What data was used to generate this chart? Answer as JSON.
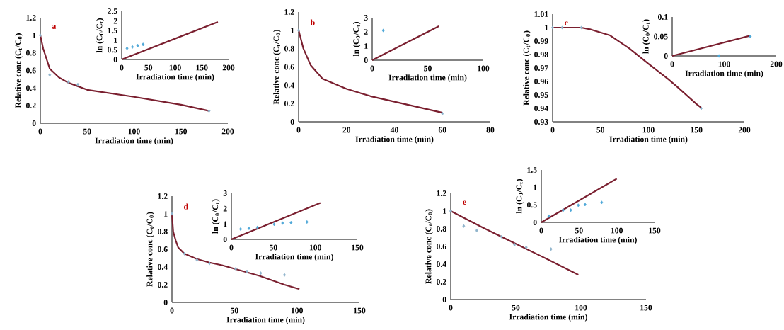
{
  "chart_data": [
    {
      "type": "line",
      "annotations": [
        "a"
      ],
      "xlabel": "Irradiation time (min)",
      "ylabel": "Relative conc (C$_{t}$/C$_{0}$)",
      "xlim": [
        0,
        200
      ],
      "ylim": [
        0,
        1.2
      ],
      "xticks": [
        0,
        50,
        100,
        150,
        200
      ],
      "yticks": [
        0,
        0.2,
        0.4,
        0.6,
        0.8,
        1,
        1.2
      ],
      "series": [
        {
          "type": "line",
          "color": "#7a1f2f",
          "x": [
            0,
            3,
            10,
            20,
            30,
            50,
            100,
            150,
            180
          ],
          "values": [
            1,
            0.85,
            0.62,
            0.52,
            0.46,
            0.38,
            0.3,
            0.21,
            0.14
          ]
        },
        {
          "type": "scatter",
          "color": "#8fb4cc",
          "marker": "diamond",
          "x": [
            0,
            10,
            30,
            40,
            180
          ],
          "values": [
            1,
            0.55,
            0.47,
            0.44,
            0.14
          ]
        }
      ]
    },
    {
      "type": "line",
      "xlabel": "Irradiation time (min)",
      "ylabel": "ln (C$_{0}$/C$_{t}$)",
      "xlim": [
        0,
        200
      ],
      "ylim": [
        0,
        2.5
      ],
      "xticks": [
        0,
        50,
        100,
        150,
        200
      ],
      "yticks": [
        0,
        0.5,
        1,
        1.5,
        2,
        2.5
      ],
      "series": [
        {
          "type": "line",
          "color": "#7a1f2f",
          "x": [
            0,
            180
          ],
          "values": [
            0,
            1.95
          ]
        },
        {
          "type": "scatter",
          "color": "#4fa8d8",
          "marker": "diamond",
          "x": [
            10,
            20,
            30,
            40
          ],
          "values": [
            0.58,
            0.65,
            0.72,
            0.78
          ]
        }
      ]
    },
    {
      "type": "line",
      "annotations": [
        "b"
      ],
      "xlabel": "Irradiation time (min)",
      "ylabel": "Relative conc (C$_{t}$/C$_{0}$)",
      "xlim": [
        0,
        80
      ],
      "ylim": [
        0,
        1.2
      ],
      "xticks": [
        0,
        20,
        40,
        60,
        80
      ],
      "yticks": [
        0,
        0.2,
        0.4,
        0.6,
        0.8,
        1,
        1.2
      ],
      "series": [
        {
          "type": "line",
          "color": "#7a1f2f",
          "x": [
            0,
            2,
            5,
            10,
            20,
            30,
            40,
            50,
            60
          ],
          "values": [
            1,
            0.8,
            0.62,
            0.47,
            0.36,
            0.28,
            0.22,
            0.16,
            0.1
          ]
        },
        {
          "type": "scatter",
          "color": "#8fb4cc",
          "marker": "diamond",
          "x": [
            0,
            60
          ],
          "values": [
            1,
            0.09
          ]
        }
      ]
    },
    {
      "type": "line",
      "xlabel": "Irradiation time (min)",
      "ylabel": "ln (C$_{0}$/C$_{t}$)",
      "xlim": [
        0,
        100
      ],
      "ylim": [
        0,
        3
      ],
      "xticks": [
        0,
        50,
        100
      ],
      "yticks": [
        0,
        1,
        2,
        3
      ],
      "series": [
        {
          "type": "line",
          "color": "#7a1f2f",
          "x": [
            0,
            60
          ],
          "values": [
            0,
            2.4
          ]
        },
        {
          "type": "scatter",
          "color": "#4fa8d8",
          "marker": "diamond",
          "x": [
            10
          ],
          "values": [
            2.1
          ]
        }
      ]
    },
    {
      "type": "line",
      "annotations": [
        "c"
      ],
      "xlabel": "Irradiation time (min)",
      "ylabel": "Relative conc (C$_{t}$/C$_{0}$)",
      "xlim": [
        0,
        200
      ],
      "ylim": [
        0.93,
        1.01
      ],
      "xticks": [
        0,
        50,
        100,
        150,
        200
      ],
      "yticks": [
        0.93,
        0.94,
        0.95,
        0.96,
        0.97,
        0.98,
        0.99,
        1,
        1.01
      ],
      "series": [
        {
          "type": "line",
          "color": "#7a1f2f",
          "x": [
            0,
            30,
            40,
            60,
            80,
            100,
            120,
            130,
            150,
            155
          ],
          "values": [
            1,
            1,
            0.9986,
            0.9942,
            0.9845,
            0.9731,
            0.962,
            0.956,
            0.9432,
            0.9405
          ]
        },
        {
          "type": "scatter",
          "color": "#8fb4cc",
          "marker": "diamond",
          "x": [
            0,
            10,
            30,
            155
          ],
          "values": [
            1,
            1,
            1,
            0.94
          ]
        }
      ]
    },
    {
      "type": "line",
      "xlabel": "Irradiation time (min)",
      "ylabel": "ln (C$_{0}$/C$_{t}$)",
      "xlim": [
        0,
        200
      ],
      "ylim": [
        0,
        0.1
      ],
      "xticks": [
        0,
        100,
        200
      ],
      "yticks": [
        0,
        0.05,
        0.1
      ],
      "series": [
        {
          "type": "line",
          "color": "#7a1f2f",
          "x": [
            0,
            150
          ],
          "values": [
            0,
            0.052
          ]
        },
        {
          "type": "scatter",
          "color": "#4fa8d8",
          "marker": "diamond",
          "x": [
            90,
            150
          ],
          "values": [
            0,
            0.05
          ]
        }
      ]
    },
    {
      "type": "line",
      "annotations": [
        "d"
      ],
      "xlabel": "Irradiation time (min)",
      "ylabel": "Relative conc (C$_{t}$/C$_{0}$)",
      "xlim": [
        0,
        150
      ],
      "ylim": [
        0,
        1.2
      ],
      "xticks": [
        0,
        50,
        100,
        150
      ],
      "yticks": [
        0,
        0.2,
        0.4,
        0.6,
        0.8,
        1,
        1.2
      ],
      "series": [
        {
          "type": "line",
          "color": "#7a1f2f",
          "x": [
            0,
            1,
            3,
            5,
            10,
            20,
            30,
            40,
            50,
            60,
            70,
            80,
            90,
            102
          ],
          "values": [
            1,
            0.8,
            0.7,
            0.62,
            0.55,
            0.49,
            0.45,
            0.42,
            0.38,
            0.34,
            0.3,
            0.25,
            0.2,
            0.15
          ]
        },
        {
          "type": "scatter",
          "color": "#8fb4cc",
          "marker": "diamond",
          "x": [
            0,
            10,
            20,
            30,
            51,
            60,
            71,
            90
          ],
          "values": [
            1,
            0.55,
            0.48,
            0.44,
            0.38,
            0.35,
            0.33,
            0.31
          ]
        }
      ]
    },
    {
      "type": "line",
      "xlabel": "Irradiation time (min)",
      "ylabel": "ln (C$_{0}$/C$_{t}$)",
      "xlim": [
        0,
        150
      ],
      "ylim": [
        0,
        3
      ],
      "xticks": [
        0,
        50,
        100,
        150
      ],
      "yticks": [
        0,
        1,
        2,
        3
      ],
      "series": [
        {
          "type": "line",
          "color": "#7a1f2f",
          "x": [
            0,
            106
          ],
          "values": [
            0,
            2.38
          ]
        },
        {
          "type": "scatter",
          "color": "#4fa8d8",
          "marker": "diamond",
          "x": [
            11,
            21,
            31,
            51,
            61,
            71,
            90
          ],
          "values": [
            0.67,
            0.72,
            0.78,
            0.98,
            1.06,
            1.09,
            1.13
          ]
        }
      ]
    },
    {
      "type": "line",
      "annotations": [
        "e"
      ],
      "xlabel": "Irradiation time (min)",
      "ylabel": "Relative conc (C$_{t}$/C$_{0}$)",
      "xlim": [
        0,
        150
      ],
      "ylim": [
        0,
        1.2
      ],
      "xticks": [
        0,
        50,
        100,
        150
      ],
      "yticks": [
        0,
        0.2,
        0.4,
        0.6,
        0.8,
        1,
        1.2
      ],
      "series": [
        {
          "type": "line",
          "color": "#7a1f2f",
          "x": [
            0,
            25,
            50,
            75,
            98
          ],
          "values": [
            1,
            0.81,
            0.63,
            0.45,
            0.28
          ]
        },
        {
          "type": "scatter",
          "color": "#8fb4cc",
          "marker": "diamond",
          "x": [
            0,
            10,
            20,
            39,
            49,
            58,
            77
          ],
          "values": [
            1,
            0.83,
            0.78,
            0.71,
            0.62,
            0.59,
            0.57
          ]
        }
      ]
    },
    {
      "type": "line",
      "xlabel": "Irradiation time (min)",
      "ylabel": "ln (C$_{0}$/C$_{t}$)",
      "xlim": [
        0,
        150
      ],
      "ylim": [
        0,
        1.5
      ],
      "xticks": [
        0,
        50,
        100,
        150
      ],
      "yticks": [
        0,
        0.5,
        1,
        1.5
      ],
      "series": [
        {
          "type": "line",
          "color": "#7a1f2f",
          "x": [
            0,
            100
          ],
          "values": [
            0,
            1.25
          ]
        },
        {
          "type": "scatter",
          "color": "#4fa8d8",
          "marker": "diamond",
          "x": [
            10,
            29,
            39,
            49,
            58,
            80
          ],
          "values": [
            0.18,
            0.35,
            0.35,
            0.49,
            0.51,
            0.57
          ]
        }
      ]
    }
  ]
}
